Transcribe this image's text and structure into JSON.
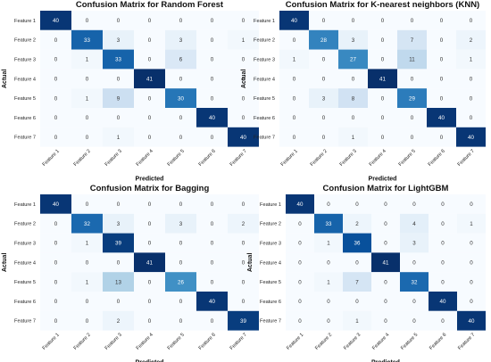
{
  "colors": {
    "low": "#f7fbff",
    "high": "#08306b",
    "text_light": "#ffffff",
    "text_dark": "#333333"
  },
  "chart_data": [
    {
      "type": "heatmap",
      "title": "Confusion Matrix for Random Forest",
      "xlabel": "Predicted",
      "ylabel": "Actual",
      "x_labels": [
        "Feature 1",
        "Feature 2",
        "Feature 3",
        "Feature 4",
        "Feature 5",
        "Feature 6",
        "Feature 7"
      ],
      "y_labels": [
        "Feature 1",
        "Feature 2",
        "Feature 3",
        "Feature 4",
        "Feature 5",
        "Feature 6",
        "Feature 7"
      ],
      "values": [
        [
          40,
          0,
          0,
          0,
          0,
          0,
          0
        ],
        [
          0,
          33,
          3,
          0,
          3,
          0,
          1
        ],
        [
          0,
          1,
          33,
          0,
          6,
          0,
          0
        ],
        [
          0,
          0,
          0,
          41,
          0,
          0,
          0
        ],
        [
          0,
          1,
          9,
          0,
          30,
          0,
          0
        ],
        [
          0,
          0,
          0,
          0,
          0,
          40,
          0
        ],
        [
          0,
          0,
          1,
          0,
          0,
          0,
          40
        ]
      ]
    },
    {
      "type": "heatmap",
      "title": "Confusion Matrix for K-nearest neighbors (KNN)",
      "xlabel": "Predicted",
      "ylabel": "Actual",
      "x_labels": [
        "Feature 1",
        "Feature 2",
        "Feature 3",
        "Feature 4",
        "Feature 5",
        "Feature 6",
        "Feature 7"
      ],
      "y_labels": [
        "Feature 1",
        "Feature 2",
        "Feature 3",
        "Feature 4",
        "Feature 5",
        "Feature 6",
        "Feature 7"
      ],
      "values": [
        [
          40,
          0,
          0,
          0,
          0,
          0,
          0
        ],
        [
          0,
          28,
          3,
          0,
          7,
          0,
          2
        ],
        [
          1,
          0,
          27,
          0,
          11,
          0,
          1
        ],
        [
          0,
          0,
          0,
          41,
          0,
          0,
          0
        ],
        [
          0,
          3,
          8,
          0,
          29,
          0,
          0
        ],
        [
          0,
          0,
          0,
          0,
          0,
          40,
          0
        ],
        [
          0,
          0,
          1,
          0,
          0,
          0,
          40
        ]
      ]
    },
    {
      "type": "heatmap",
      "title": "Confusion Matrix for Bagging",
      "xlabel": "Predicted",
      "ylabel": "Actual",
      "x_labels": [
        "Feature 1",
        "Feature 2",
        "Feature 3",
        "Feature 4",
        "Feature 5",
        "Feature 6",
        "Feature 7"
      ],
      "y_labels": [
        "Feature 1",
        "Feature 2",
        "Feature 3",
        "Feature 4",
        "Feature 5",
        "Feature 6",
        "Feature 7"
      ],
      "values": [
        [
          40,
          0,
          0,
          0,
          0,
          0,
          0
        ],
        [
          0,
          32,
          3,
          0,
          3,
          0,
          2
        ],
        [
          0,
          1,
          39,
          0,
          0,
          0,
          0
        ],
        [
          0,
          0,
          0,
          41,
          0,
          0,
          0
        ],
        [
          0,
          1,
          13,
          0,
          26,
          0,
          0
        ],
        [
          0,
          0,
          0,
          0,
          0,
          40,
          0
        ],
        [
          0,
          0,
          2,
          0,
          0,
          0,
          39
        ]
      ]
    },
    {
      "type": "heatmap",
      "title": "Confusion Matrix for LightGBM",
      "xlabel": "Predicted",
      "ylabel": "Actual",
      "x_labels": [
        "Feature 1",
        "Feature 2",
        "Feature 3",
        "Feature 4",
        "Feature 5",
        "Feature 6",
        "Feature 7"
      ],
      "y_labels": [
        "Feature 1",
        "Feature 2",
        "Feature 3",
        "Feature 4",
        "Feature 5",
        "Feature 6",
        "Feature 7"
      ],
      "values": [
        [
          40,
          0,
          0,
          0,
          0,
          0,
          0
        ],
        [
          0,
          33,
          2,
          0,
          4,
          0,
          1
        ],
        [
          0,
          1,
          36,
          0,
          3,
          0,
          0
        ],
        [
          0,
          0,
          0,
          41,
          0,
          0,
          0
        ],
        [
          0,
          1,
          7,
          0,
          32,
          0,
          0
        ],
        [
          0,
          0,
          0,
          0,
          0,
          40,
          0
        ],
        [
          0,
          0,
          1,
          0,
          0,
          0,
          40
        ]
      ]
    }
  ]
}
